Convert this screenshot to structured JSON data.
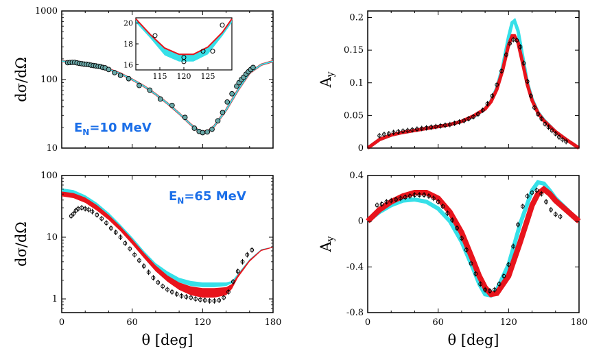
{
  "chart_data": [
    {
      "type": "scatter",
      "panel": "top-left",
      "ylabel": "dσ/dΩ",
      "annotation": "E_N=10 MeV",
      "annotation_main": "E",
      "annotation_sub": "N",
      "annotation_rest": "=10 MeV",
      "xlim": [
        0,
        180
      ],
      "ylim": [
        10,
        1000
      ],
      "yscale": "log",
      "yticks": [
        "10",
        "100",
        "1000"
      ],
      "colors": {
        "band_cyan": "#36e0e8",
        "band_red": "#e8141c",
        "points": "#6aa8a8"
      },
      "series": [
        {
          "kind": "points",
          "x": [
            5,
            7,
            9,
            11,
            13,
            15,
            17,
            19,
            21,
            23,
            25,
            27,
            29,
            31,
            33,
            35,
            37,
            40,
            45,
            50,
            57,
            66,
            75,
            84,
            94,
            105,
            113,
            117,
            120,
            124,
            128,
            133,
            137,
            141,
            145,
            149,
            151,
            153,
            155,
            157,
            159,
            161,
            163
          ],
          "y": [
            176,
            177,
            178,
            178,
            175,
            172,
            170,
            168,
            167,
            165,
            162,
            160,
            158,
            156,
            154,
            150,
            148,
            140,
            126,
            115,
            103,
            82,
            70,
            52,
            42,
            28,
            19.5,
            17.5,
            16.8,
            17.2,
            18.8,
            25,
            33,
            47,
            62,
            80,
            90,
            100,
            108,
            120,
            130,
            140,
            150
          ]
        },
        {
          "kind": "line",
          "name": "",
          "x": [
            0,
            10,
            20,
            30,
            40,
            50,
            60,
            70,
            80,
            90,
            100,
            110,
            115,
            120,
            125,
            130,
            140,
            150,
            160,
            170,
            180
          ],
          "y": [
            185,
            182,
            174,
            160,
            142,
            122,
            100,
            80,
            61,
            45,
            32,
            22,
            18.8,
            17.2,
            17.8,
            21,
            36,
            70,
            125,
            165,
            185
          ]
        }
      ],
      "inset": {
        "xlim": [
          110,
          130
        ],
        "ylim": [
          15.5,
          20.5
        ],
        "xticks": [
          "115",
          "120",
          "125"
        ],
        "yticks": [
          "16",
          "18",
          "20"
        ],
        "points": {
          "x": [
            114,
            120,
            120,
            124,
            126,
            128
          ],
          "y": [
            18.8,
            16.7,
            16.3,
            17.3,
            17.3,
            19.8
          ]
        },
        "curve": {
          "x": [
            110,
            113,
            116,
            119,
            122,
            125,
            128,
            130
          ],
          "y": [
            20.3,
            18.8,
            17.5,
            16.9,
            16.9,
            17.6,
            19.0,
            20.3
          ]
        }
      }
    },
    {
      "type": "scatter",
      "panel": "top-right",
      "ylabel": "A",
      "ylabel_sub": "y",
      "xlim": [
        0,
        180
      ],
      "ylim": [
        0,
        0.21
      ],
      "yticks": [
        "0",
        "0.05",
        "0.1",
        "0.15",
        "0.2"
      ],
      "series": [
        {
          "kind": "points",
          "x": [
            10,
            14,
            18,
            22,
            26,
            30,
            34,
            38,
            42,
            46,
            50,
            54,
            58,
            62,
            66,
            70,
            74,
            78,
            82,
            86,
            90,
            94,
            98,
            102,
            106,
            110,
            114,
            118,
            121,
            124,
            127,
            130,
            133,
            136,
            139,
            142,
            145,
            148,
            151,
            154,
            157,
            160,
            163,
            166,
            169
          ],
          "y": [
            0.019,
            0.021,
            0.022,
            0.024,
            0.025,
            0.026,
            0.027,
            0.028,
            0.029,
            0.03,
            0.031,
            0.032,
            0.033,
            0.034,
            0.035,
            0.036,
            0.038,
            0.04,
            0.042,
            0.045,
            0.048,
            0.052,
            0.058,
            0.068,
            0.08,
            0.097,
            0.118,
            0.143,
            0.16,
            0.166,
            0.165,
            0.155,
            0.13,
            0.102,
            0.08,
            0.062,
            0.052,
            0.045,
            0.037,
            0.032,
            0.027,
            0.022,
            0.017,
            0.013,
            0.01
          ]
        },
        {
          "kind": "band",
          "name": "",
          "x": [
            0,
            10,
            20,
            30,
            40,
            50,
            60,
            70,
            80,
            90,
            100,
            105,
            110,
            115,
            120,
            123,
            125,
            128,
            132,
            136,
            140,
            145,
            150,
            160,
            170,
            180
          ],
          "y": [
            0,
            0.013,
            0.02,
            0.024,
            0.027,
            0.03,
            0.033,
            0.036,
            0.041,
            0.048,
            0.06,
            0.072,
            0.092,
            0.125,
            0.17,
            0.192,
            0.195,
            0.18,
            0.14,
            0.1,
            0.075,
            0.055,
            0.043,
            0.025,
            0.012,
            0
          ]
        },
        {
          "kind": "band",
          "name": "",
          "x": [
            0,
            10,
            20,
            30,
            40,
            50,
            60,
            70,
            80,
            90,
            100,
            105,
            110,
            115,
            120,
            123,
            125,
            128,
            132,
            136,
            140,
            145,
            150,
            160,
            170,
            180
          ],
          "y": [
            0,
            0.013,
            0.02,
            0.024,
            0.027,
            0.03,
            0.033,
            0.036,
            0.041,
            0.049,
            0.06,
            0.071,
            0.09,
            0.12,
            0.158,
            0.172,
            0.172,
            0.162,
            0.13,
            0.097,
            0.073,
            0.054,
            0.042,
            0.025,
            0.012,
            0
          ]
        }
      ]
    },
    {
      "type": "scatter",
      "panel": "bottom-left",
      "ylabel": "dσ/dΩ",
      "xlabel": "θ  [deg]",
      "annotation": "E_N=65 MeV",
      "annotation_main": "E",
      "annotation_sub": "N",
      "annotation_rest": "=65 MeV",
      "xlim": [
        0,
        180
      ],
      "ylim": [
        0.6,
        100
      ],
      "yscale": "log",
      "yticks": [
        "1",
        "10",
        "100"
      ],
      "xticks": [
        "0",
        "60",
        "120",
        "180"
      ],
      "series": [
        {
          "kind": "points",
          "x": [
            8,
            10,
            12,
            14,
            17,
            20,
            23,
            26,
            30,
            34,
            38,
            42,
            46,
            50,
            54,
            58,
            62,
            66,
            70,
            74,
            78,
            82,
            86,
            90,
            94,
            98,
            102,
            106,
            110,
            114,
            118,
            122,
            126,
            130,
            134,
            138,
            142,
            146,
            150,
            154,
            158,
            162
          ],
          "y": [
            22,
            24,
            27,
            29,
            30,
            29,
            28,
            26,
            23,
            20,
            17,
            14,
            12,
            10,
            8,
            6.5,
            5.2,
            4.2,
            3.4,
            2.7,
            2.2,
            1.85,
            1.6,
            1.42,
            1.3,
            1.2,
            1.12,
            1.08,
            1.05,
            1.0,
            0.97,
            0.95,
            0.93,
            0.93,
            0.95,
            1.05,
            1.3,
            1.9,
            2.8,
            4.0,
            5.2,
            6.2
          ]
        },
        {
          "kind": "band",
          "name": "",
          "x": [
            0,
            10,
            20,
            30,
            40,
            50,
            60,
            70,
            80,
            90,
            100,
            110,
            120,
            130,
            140,
            145,
            150,
            160,
            170,
            180
          ],
          "y_low": [
            47,
            45,
            39,
            30,
            21,
            14,
            8.6,
            5.2,
            3.3,
            2.3,
            1.85,
            1.62,
            1.55,
            1.55,
            1.62,
            1.8,
            2.4,
            4.2,
            6.2,
            6.8
          ],
          "y_high": [
            62,
            58,
            48,
            36,
            25,
            16,
            10,
            6.0,
            3.8,
            2.8,
            2.2,
            1.95,
            1.85,
            1.85,
            1.85,
            1.95,
            2.55,
            4.4,
            6.4,
            7.0
          ]
        },
        {
          "kind": "band",
          "name": "",
          "x": [
            0,
            10,
            20,
            30,
            40,
            50,
            60,
            70,
            80,
            90,
            100,
            110,
            120,
            130,
            140,
            145,
            150,
            160,
            170,
            180
          ],
          "y_low": [
            46,
            43,
            36,
            27,
            19,
            12.5,
            7.7,
            4.6,
            2.8,
            1.9,
            1.4,
            1.15,
            1.05,
            1.05,
            1.15,
            1.45,
            2.2,
            4.0,
            6.0,
            6.8
          ],
          "y_high": [
            55,
            52,
            44,
            33,
            23,
            15,
            9.3,
            5.6,
            3.5,
            2.4,
            1.85,
            1.6,
            1.5,
            1.5,
            1.55,
            1.75,
            2.45,
            4.3,
            6.3,
            7.0
          ]
        }
      ]
    },
    {
      "type": "scatter",
      "panel": "bottom-right",
      "ylabel": "A",
      "ylabel_sub": "y",
      "xlabel": "θ  [deg]",
      "xlim": [
        0,
        180
      ],
      "ylim": [
        -0.8,
        0.4
      ],
      "yticks": [
        "-0.8",
        "-0.4",
        "0",
        "0.4"
      ],
      "xticks": [
        "0",
        "60",
        "120",
        "180"
      ],
      "series": [
        {
          "kind": "points",
          "x": [
            8,
            12,
            16,
            20,
            24,
            28,
            32,
            36,
            40,
            44,
            48,
            52,
            56,
            60,
            64,
            68,
            72,
            76,
            80,
            84,
            88,
            92,
            96,
            100,
            104,
            108,
            112,
            116,
            120,
            124,
            128,
            132,
            136,
            140,
            144,
            148,
            152,
            156,
            160,
            164
          ],
          "y": [
            0.14,
            0.15,
            0.17,
            0.18,
            0.19,
            0.2,
            0.21,
            0.22,
            0.23,
            0.23,
            0.23,
            0.22,
            0.2,
            0.17,
            0.13,
            0.07,
            0.01,
            -0.06,
            -0.15,
            -0.25,
            -0.37,
            -0.46,
            -0.55,
            -0.6,
            -0.61,
            -0.6,
            -0.55,
            -0.48,
            -0.38,
            -0.22,
            -0.03,
            0.13,
            0.22,
            0.25,
            0.27,
            0.24,
            0.17,
            0.1,
            0.06,
            0.04
          ]
        },
        {
          "kind": "line",
          "name": "",
          "x": [
            0,
            10,
            20,
            30,
            40,
            50,
            60,
            70,
            80,
            90,
            95,
            100,
            105,
            110,
            120,
            130,
            140,
            145,
            150,
            155,
            160,
            170,
            180
          ],
          "y": [
            0.0,
            0.08,
            0.14,
            0.18,
            0.19,
            0.17,
            0.11,
            0.0,
            -0.18,
            -0.42,
            -0.55,
            -0.64,
            -0.65,
            -0.6,
            -0.38,
            -0.02,
            0.27,
            0.34,
            0.33,
            0.27,
            0.2,
            0.1,
            0.0
          ]
        },
        {
          "kind": "band",
          "name": "",
          "x": [
            0,
            10,
            20,
            30,
            40,
            50,
            60,
            70,
            80,
            90,
            95,
            100,
            105,
            110,
            120,
            130,
            140,
            145,
            150,
            155,
            160,
            170,
            180
          ],
          "y": [
            0.0,
            0.1,
            0.17,
            0.22,
            0.25,
            0.25,
            0.2,
            0.08,
            -0.1,
            -0.35,
            -0.48,
            -0.58,
            -0.64,
            -0.63,
            -0.48,
            -0.18,
            0.14,
            0.24,
            0.28,
            0.24,
            0.18,
            0.09,
            0.0
          ]
        }
      ]
    }
  ]
}
